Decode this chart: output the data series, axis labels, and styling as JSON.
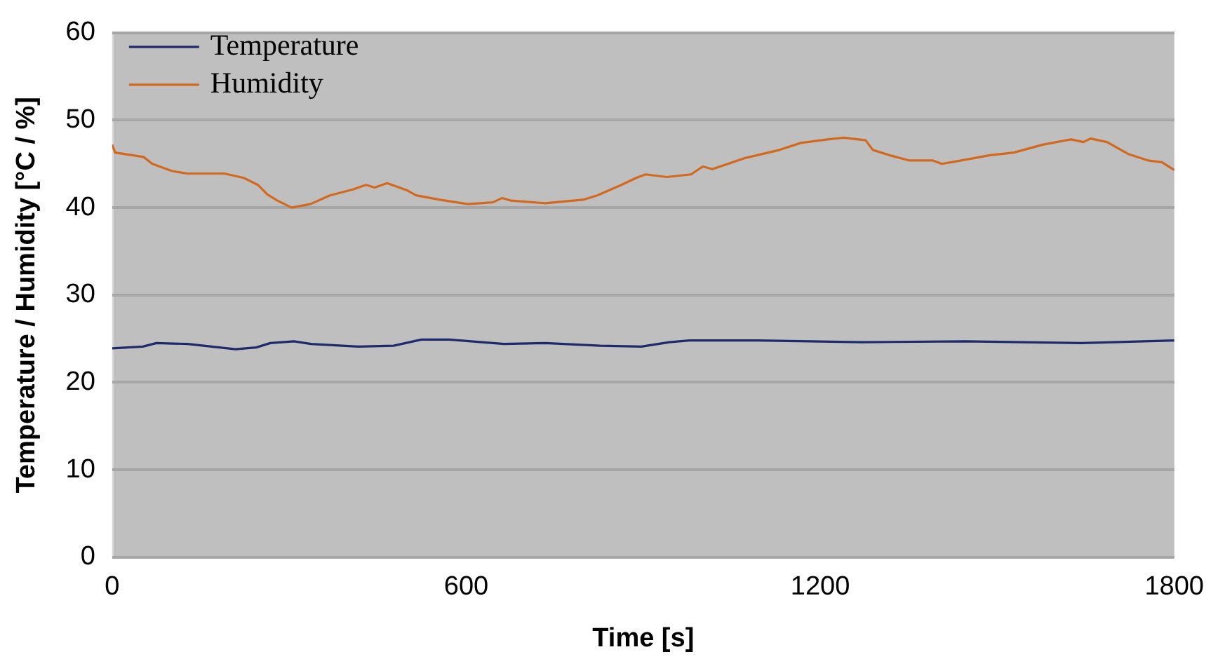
{
  "chart_data": {
    "type": "line",
    "xlabel": "Time [s]",
    "ylabel": "Temperature / Humidity [°C / %]",
    "xlim": [
      0,
      1800
    ],
    "xticks": [
      0,
      600,
      1200,
      1800
    ],
    "ylim": [
      0,
      60
    ],
    "yticks": [
      0,
      10,
      20,
      30,
      40,
      50,
      60
    ],
    "grid": "y",
    "legend": "top left",
    "marker": "none",
    "line_style": "solid",
    "series": [
      {
        "name": "Temperature",
        "color": "#1f2a6b",
        "x": [
          0,
          52,
          75,
          128,
          209,
          244,
          268,
          308,
          337,
          418,
          477,
          524,
          571,
          664,
          734,
          827,
          897,
          944,
          978,
          1094,
          1270,
          1445,
          1643,
          1800
        ],
        "values": [
          23.9,
          24.1,
          24.5,
          24.4,
          23.8,
          24.0,
          24.5,
          24.7,
          24.4,
          24.1,
          24.2,
          24.9,
          24.9,
          24.4,
          24.5,
          24.2,
          24.1,
          24.6,
          24.8,
          24.8,
          24.6,
          24.7,
          24.5,
          24.8
        ]
      },
      {
        "name": "Humidity",
        "color": "#d2691e",
        "x": [
          0,
          5,
          53,
          68,
          101,
          126,
          190,
          223,
          247,
          263,
          280,
          304,
          336,
          369,
          409,
          430,
          445,
          466,
          499,
          515,
          555,
          603,
          645,
          661,
          676,
          734,
          798,
          822,
          863,
          888,
          904,
          940,
          981,
          1001,
          1017,
          1074,
          1131,
          1167,
          1212,
          1240,
          1277,
          1289,
          1317,
          1350,
          1390,
          1406,
          1439,
          1488,
          1528,
          1577,
          1625,
          1646,
          1658,
          1686,
          1723,
          1755,
          1779,
          1800
        ],
        "values": [
          47.2,
          46.3,
          45.8,
          45.0,
          44.2,
          43.9,
          43.9,
          43.4,
          42.6,
          41.5,
          40.8,
          40.0,
          40.4,
          41.4,
          42.1,
          42.6,
          42.3,
          42.8,
          42.0,
          41.4,
          40.9,
          40.4,
          40.6,
          41.1,
          40.8,
          40.5,
          40.9,
          41.4,
          42.6,
          43.4,
          43.8,
          43.5,
          43.8,
          44.7,
          44.4,
          45.7,
          46.6,
          47.4,
          47.8,
          48.0,
          47.7,
          46.6,
          46.0,
          45.4,
          45.4,
          45.0,
          45.4,
          46.0,
          46.3,
          47.2,
          47.8,
          47.5,
          47.9,
          47.5,
          46.1,
          45.4,
          45.2,
          44.3
        ]
      }
    ]
  }
}
